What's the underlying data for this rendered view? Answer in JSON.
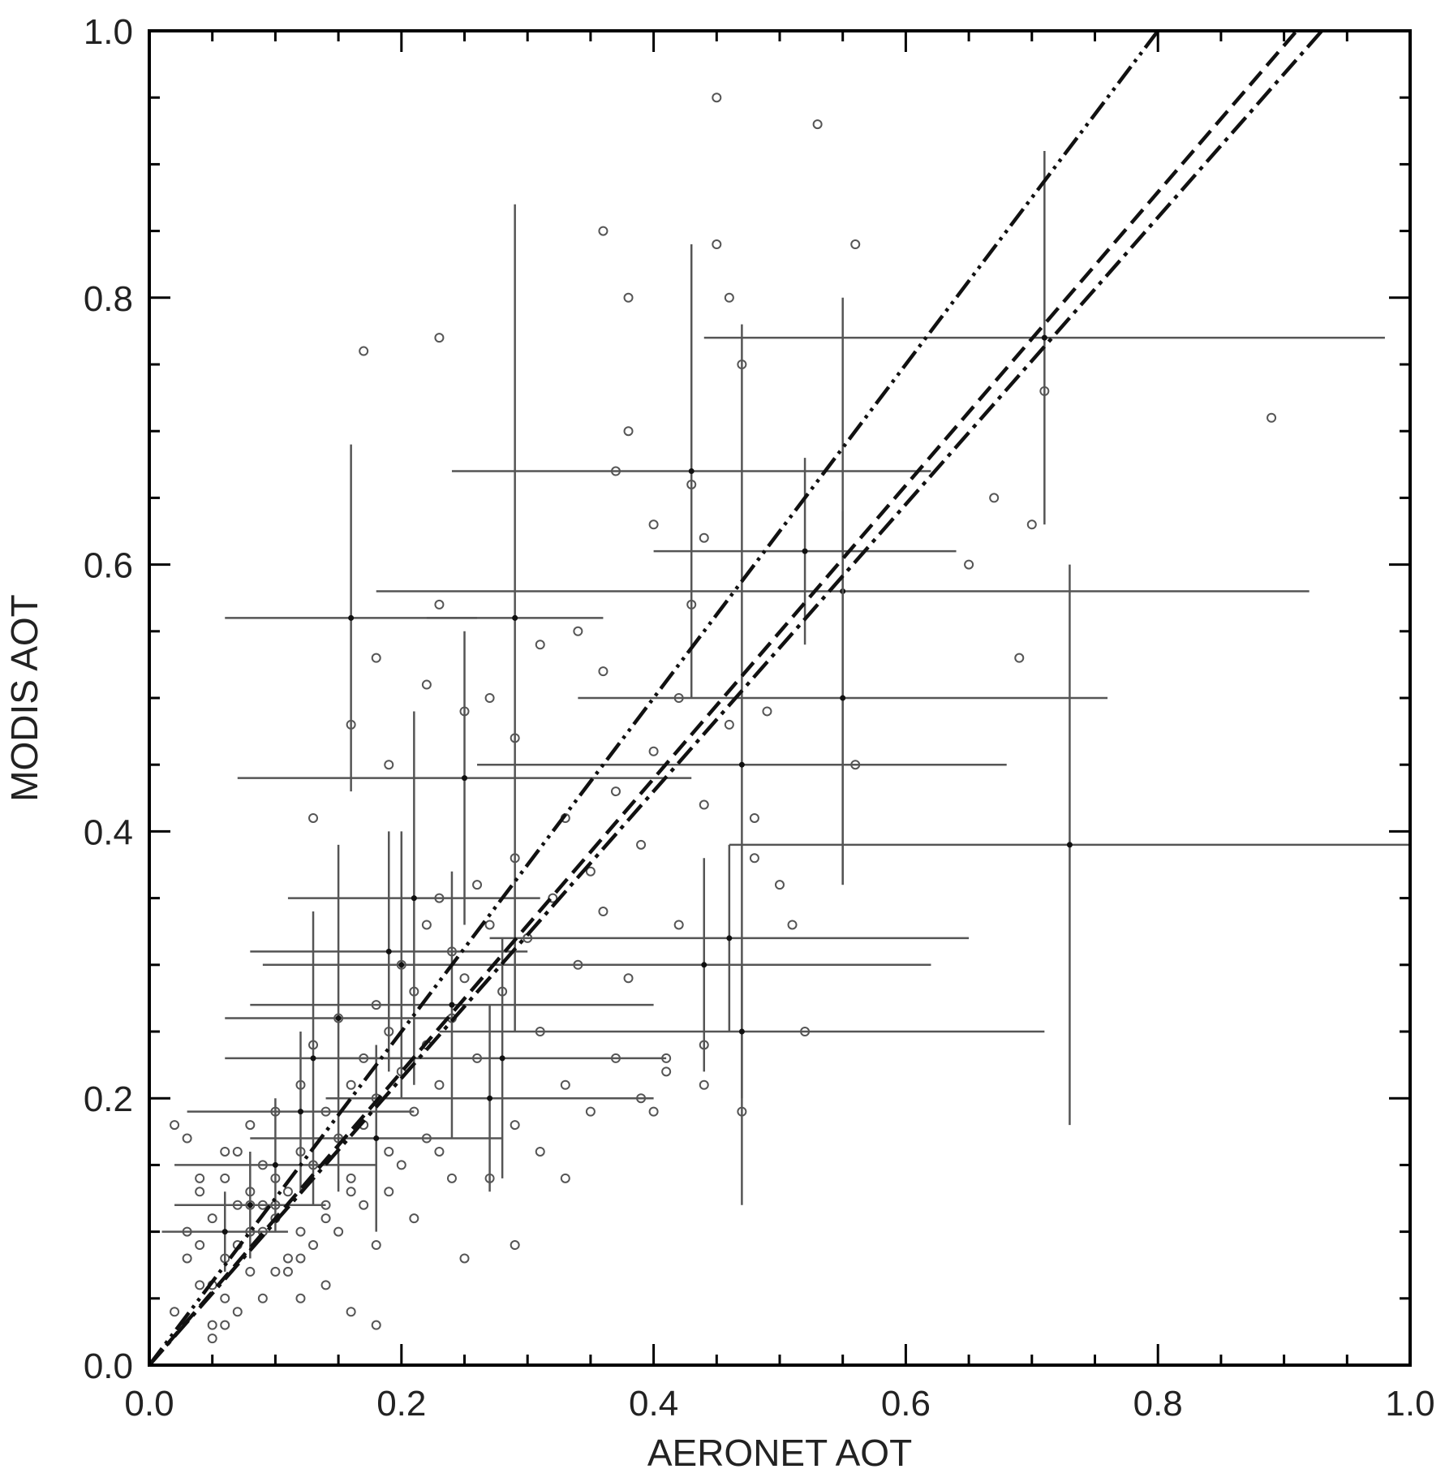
{
  "chart_data": {
    "type": "scatter",
    "title": "",
    "xlabel": "AERONET AOT",
    "ylabel": "MODIS AOT",
    "xlim": [
      0.0,
      1.0
    ],
    "ylim": [
      0.0,
      1.0
    ],
    "x_ticks": [
      "0.0",
      "0.2",
      "0.4",
      "0.6",
      "0.8",
      "1.0"
    ],
    "y_ticks": [
      "0.0",
      "0.2",
      "0.4",
      "0.6",
      "0.8",
      "1.0"
    ],
    "grid": false,
    "legend": "none",
    "colors": {
      "axis": "#000000",
      "points": "#555555",
      "errorbars": "#555555",
      "lines": "#111111"
    },
    "series": [
      {
        "kind": "points",
        "x": [
          0.02,
          0.03,
          0.03,
          0.04,
          0.04,
          0.05,
          0.05,
          0.05,
          0.06,
          0.06,
          0.06,
          0.07,
          0.07,
          0.07,
          0.08,
          0.08,
          0.08,
          0.09,
          0.09,
          0.09,
          0.1,
          0.1,
          0.1,
          0.11,
          0.11,
          0.12,
          0.12,
          0.12,
          0.13,
          0.13,
          0.14,
          0.14,
          0.15,
          0.15,
          0.16,
          0.16,
          0.17,
          0.17,
          0.18,
          0.18,
          0.19,
          0.19,
          0.2,
          0.2,
          0.21,
          0.21,
          0.22,
          0.22,
          0.23,
          0.23,
          0.24,
          0.24,
          0.25,
          0.26,
          0.26,
          0.27,
          0.28,
          0.29,
          0.3,
          0.31,
          0.32,
          0.33,
          0.34,
          0.35,
          0.36,
          0.37,
          0.38,
          0.39,
          0.4,
          0.42,
          0.44,
          0.46,
          0.48,
          0.05,
          0.07,
          0.09,
          0.11,
          0.13,
          0.15,
          0.17,
          0.03,
          0.04,
          0.06,
          0.08,
          0.1,
          0.12,
          0.14,
          0.16,
          0.18,
          0.2,
          0.22,
          0.24,
          0.02,
          0.04,
          0.06,
          0.08,
          0.1,
          0.12,
          0.14,
          0.19,
          0.21,
          0.23,
          0.27,
          0.29,
          0.31,
          0.33,
          0.35,
          0.37,
          0.39,
          0.41,
          0.17,
          0.23,
          0.23,
          0.38,
          0.38,
          0.45,
          0.45,
          0.36,
          0.47,
          0.53,
          0.56,
          0.37,
          0.43,
          0.44,
          0.4,
          0.42,
          0.49,
          0.56,
          0.67,
          0.69,
          0.7,
          0.71,
          0.89,
          0.65,
          0.34,
          0.31,
          0.36,
          0.29,
          0.27,
          0.25,
          0.22,
          0.19,
          0.18,
          0.16,
          0.13,
          0.46,
          0.48,
          0.5,
          0.51,
          0.52,
          0.43,
          0.44,
          0.47,
          0.44,
          0.41,
          0.4,
          0.33,
          0.29,
          0.25,
          0.16,
          0.18
        ],
        "y": [
          0.18,
          0.17,
          0.1,
          0.09,
          0.13,
          0.06,
          0.11,
          0.03,
          0.08,
          0.14,
          0.05,
          0.12,
          0.16,
          0.09,
          0.07,
          0.13,
          0.18,
          0.1,
          0.15,
          0.12,
          0.11,
          0.19,
          0.14,
          0.13,
          0.08,
          0.16,
          0.21,
          0.1,
          0.15,
          0.24,
          0.12,
          0.19,
          0.17,
          0.26,
          0.14,
          0.21,
          0.23,
          0.18,
          0.2,
          0.27,
          0.16,
          0.25,
          0.22,
          0.3,
          0.19,
          0.28,
          0.24,
          0.33,
          0.21,
          0.35,
          0.26,
          0.31,
          0.29,
          0.23,
          0.36,
          0.33,
          0.28,
          0.38,
          0.32,
          0.25,
          0.35,
          0.41,
          0.3,
          0.37,
          0.34,
          0.43,
          0.29,
          0.39,
          0.46,
          0.33,
          0.42,
          0.48,
          0.41,
          0.02,
          0.04,
          0.05,
          0.07,
          0.09,
          0.1,
          0.12,
          0.08,
          0.14,
          0.16,
          0.12,
          0.07,
          0.05,
          0.11,
          0.13,
          0.09,
          0.15,
          0.17,
          0.14,
          0.04,
          0.06,
          0.03,
          0.1,
          0.12,
          0.08,
          0.06,
          0.13,
          0.11,
          0.16,
          0.14,
          0.18,
          0.16,
          0.21,
          0.19,
          0.23,
          0.2,
          0.22,
          0.76,
          0.77,
          0.57,
          0.8,
          0.7,
          0.95,
          0.84,
          0.85,
          0.75,
          0.93,
          0.84,
          0.67,
          0.66,
          0.62,
          0.63,
          0.5,
          0.49,
          0.45,
          0.65,
          0.53,
          0.63,
          0.73,
          0.71,
          0.6,
          0.55,
          0.54,
          0.52,
          0.47,
          0.5,
          0.49,
          0.51,
          0.45,
          0.53,
          0.48,
          0.41,
          0.8,
          0.38,
          0.36,
          0.33,
          0.25,
          0.57,
          0.24,
          0.19,
          0.21,
          0.23,
          0.19,
          0.14,
          0.09,
          0.08,
          0.04,
          0.03
        ]
      },
      {
        "kind": "errorbars",
        "x": [
          0.16,
          0.29,
          0.43,
          0.52,
          0.55,
          0.55,
          0.73,
          0.71,
          0.47,
          0.47,
          0.46,
          0.44,
          0.25,
          0.24,
          0.21,
          0.2,
          0.19,
          0.15,
          0.13,
          0.27,
          0.28,
          0.18,
          0.12,
          0.1,
          0.08,
          0.06
        ],
        "y": [
          0.56,
          0.56,
          0.67,
          0.61,
          0.58,
          0.5,
          0.39,
          0.77,
          0.45,
          0.25,
          0.32,
          0.3,
          0.44,
          0.27,
          0.35,
          0.3,
          0.31,
          0.26,
          0.23,
          0.2,
          0.23,
          0.17,
          0.19,
          0.15,
          0.12,
          0.1
        ],
        "x_err": [
          0.1,
          0.07,
          0.19,
          0.12,
          0.37,
          0.21,
          0.27,
          0.27,
          0.21,
          0.24,
          0.19,
          0.18,
          0.18,
          0.16,
          0.1,
          0.11,
          0.11,
          0.09,
          0.07,
          0.13,
          0.13,
          0.1,
          0.09,
          0.08,
          0.06,
          0.05
        ],
        "y_err": [
          0.13,
          0.31,
          0.17,
          0.07,
          0.22,
          0.14,
          0.21,
          0.14,
          0.33,
          0.05,
          0.07,
          0.08,
          0.11,
          0.1,
          0.14,
          0.1,
          0.09,
          0.13,
          0.11,
          0.07,
          0.09,
          0.07,
          0.06,
          0.05,
          0.04,
          0.03
        ]
      },
      {
        "kind": "line",
        "style": "dash-dot-dot",
        "x": [
          0.0,
          0.8
        ],
        "y": [
          0.0,
          1.0
        ]
      },
      {
        "kind": "line",
        "style": "dashed",
        "x": [
          0.0,
          0.91
        ],
        "y": [
          0.0,
          1.0
        ]
      },
      {
        "kind": "line",
        "style": "dash-dot",
        "x": [
          0.0,
          0.93
        ],
        "y": [
          0.0,
          1.0
        ]
      }
    ]
  }
}
